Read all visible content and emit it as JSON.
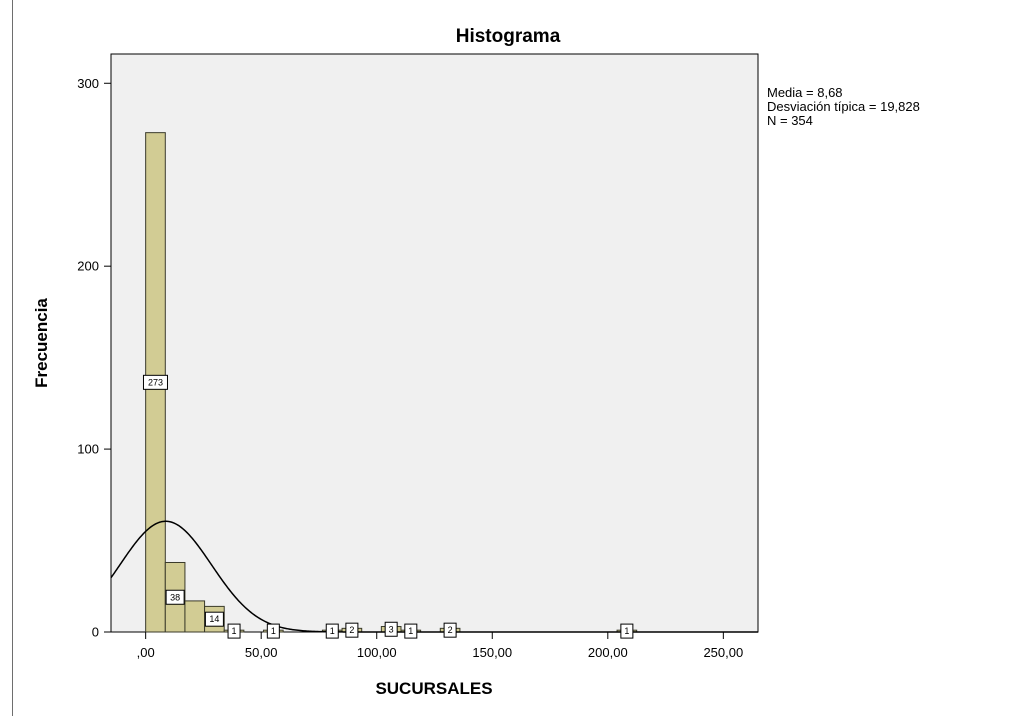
{
  "chart_data": {
    "type": "bar",
    "title": "Histograma",
    "xlabel": "SUCURSALES",
    "ylabel": "Frecuencia",
    "xlim": [
      -15,
      265
    ],
    "ylim": [
      0,
      316
    ],
    "bin_width": 8.5,
    "x_ticks": [
      0,
      50,
      100,
      150,
      200,
      250
    ],
    "x_tick_labels": [
      ",00",
      "50,00",
      "100,00",
      "150,00",
      "200,00",
      "250,00"
    ],
    "y_ticks": [
      0,
      100,
      200,
      300
    ],
    "y_tick_labels": [
      "0",
      "100",
      "200",
      "300"
    ],
    "grid": false,
    "bins": [
      {
        "x0": 0,
        "x1": 8.5,
        "count": 273,
        "label": "273"
      },
      {
        "x0": 8.5,
        "x1": 17,
        "count": 38,
        "label": "38"
      },
      {
        "x0": 17,
        "x1": 25.5,
        "count": 17,
        "label": ""
      },
      {
        "x0": 25.5,
        "x1": 34,
        "count": 14,
        "label": "14"
      },
      {
        "x0": 34,
        "x1": 42.5,
        "count": 1,
        "label": "1"
      },
      {
        "x0": 51,
        "x1": 59.5,
        "count": 1,
        "label": "1"
      },
      {
        "x0": 76.5,
        "x1": 85,
        "count": 1,
        "label": "1"
      },
      {
        "x0": 85,
        "x1": 93.5,
        "count": 2,
        "label": "2"
      },
      {
        "x0": 102,
        "x1": 110.5,
        "count": 3,
        "label": "3"
      },
      {
        "x0": 110.5,
        "x1": 119,
        "count": 1,
        "label": "1"
      },
      {
        "x0": 127.5,
        "x1": 136,
        "count": 2,
        "label": "2"
      },
      {
        "x0": 204,
        "x1": 212.5,
        "count": 1,
        "label": "1"
      }
    ],
    "normal_curve": {
      "mean": 8.68,
      "sd": 19.828,
      "n": 354
    },
    "stats": {
      "mean_text": "Media = 8,68",
      "sd_text": "Desviación típica = 19,828",
      "n_text": "N = 354"
    },
    "legend_placement": "top-right, outside plot",
    "colors": {
      "bar_fill": "#d2cc94",
      "bar_stroke": "#3a3a2a",
      "plot_bg": "#f0f0f0",
      "curve": "#000000",
      "outline": "#000000"
    }
  }
}
